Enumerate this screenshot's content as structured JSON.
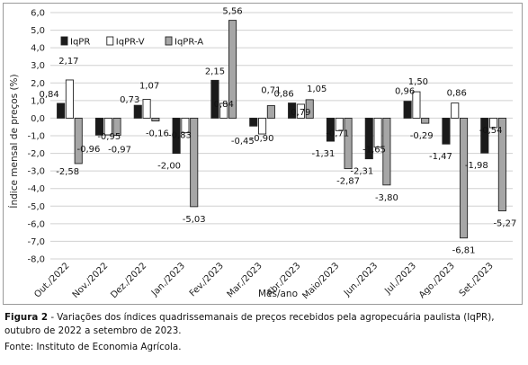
{
  "chart_data": {
    "type": "bar",
    "ylabel": "Índice mensal de preços (%)",
    "xlabel": "Mês/ano",
    "ylim": [
      -8,
      6
    ],
    "ytick_step": 1,
    "yticks": [
      "6,0",
      "5,0",
      "4,0",
      "3,0",
      "2,0",
      "1,0",
      "0,0",
      "-1,0",
      "-2,0",
      "-3,0",
      "-4,0",
      "-5,0",
      "-6,0",
      "-7,0",
      "-8,0"
    ],
    "grid": true,
    "legend_position": "top-left",
    "categories": [
      "Out./2022",
      "Nov./2022",
      "Dez./2022",
      "Jan./2023",
      "Fev./2023",
      "Mar./2023",
      "Abr./2023",
      "Maio/2023",
      "Jun./2023",
      "Jul./2023",
      "Ago./2023",
      "Set./2023"
    ],
    "series": [
      {
        "name": "IqPR",
        "color": "#1a1a1a",
        "values": [
          0.84,
          -0.96,
          0.73,
          -2.0,
          2.15,
          -0.45,
          0.86,
          -1.31,
          -2.31,
          0.96,
          -1.47,
          -1.98
        ],
        "labels": [
          "0,84",
          "-0,96",
          "0,73",
          "-2,00",
          "2,15",
          "-0,45",
          "0,86",
          "-1,31",
          "-2,31",
          "0,96",
          "-1,47",
          "-1,98"
        ]
      },
      {
        "name": "IqPR-V",
        "color": "#ffffff",
        "values": [
          2.17,
          -0.95,
          1.07,
          -0.83,
          0.84,
          -0.9,
          0.79,
          -0.71,
          -1.65,
          1.5,
          0.86,
          -0.54
        ],
        "labels": [
          "2,17",
          "-0,95",
          "1,07",
          "-0,83",
          "0,84",
          "-0,90",
          "0,79",
          "-0,71",
          "-1,65",
          "1,50",
          "0,86",
          "-0,54"
        ]
      },
      {
        "name": "IqPR-A",
        "color": "#a6a6a6",
        "values": [
          -2.58,
          -0.97,
          -0.16,
          -5.03,
          5.56,
          0.71,
          1.05,
          -2.87,
          -3.8,
          -0.29,
          -6.81,
          -5.27
        ],
        "labels": [
          "-2,58",
          "-0,97",
          "-0,16",
          "-5,03",
          "5,56",
          "0,71",
          "1,05",
          "-2,87",
          "-3,80",
          "-0,29",
          "-6,81",
          "-5,27"
        ]
      }
    ]
  },
  "caption": {
    "figure_label": "Figura 2",
    "text": " - Variações dos índices quadrissemanais de preços recebidos pela agropecuária paulista (IqPR), outubro de 2022 a setembro de 2023."
  },
  "source": "Fonte: Instituto de Economia Agrícola."
}
